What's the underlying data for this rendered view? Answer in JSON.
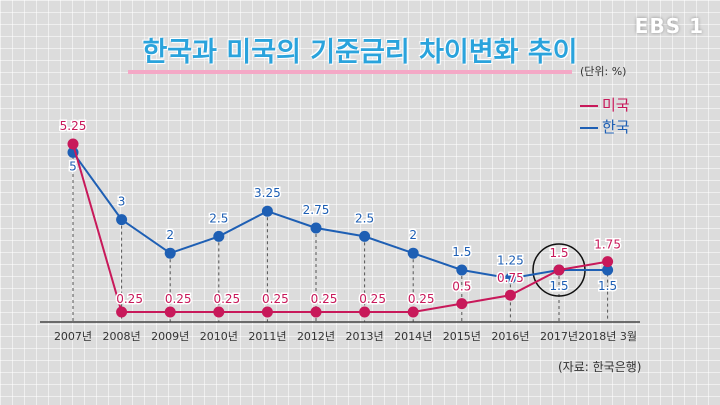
{
  "broadcaster_logo": "EBS 1",
  "chart_data": {
    "type": "line",
    "title": "한국과 미국의 기준금리 차이변화 추이",
    "unit_label": "(단위: %)",
    "source_note": "(자료: 한국은행)",
    "categories": [
      "2007년",
      "2008년",
      "2009년",
      "2010년",
      "2011년",
      "2012년",
      "2013년",
      "2014년",
      "2015년",
      "2016년",
      "2017년",
      "2018년 3월"
    ],
    "series": [
      {
        "name": "미국",
        "color": "#c8195a",
        "values": [
          5.25,
          0.25,
          0.25,
          0.25,
          0.25,
          0.25,
          0.25,
          0.25,
          0.5,
          0.75,
          1.5,
          1.75
        ],
        "labels": [
          "5.25",
          "0.25",
          "0.25",
          "0.25",
          "0.25",
          "0.25",
          "0.25",
          "0.25",
          "0.5",
          "0.75",
          "1.5",
          "1.75"
        ]
      },
      {
        "name": "한국",
        "color": "#1e5fb4",
        "values": [
          5,
          3,
          2,
          2.5,
          3.25,
          2.75,
          2.5,
          2,
          1.5,
          1.25,
          1.5,
          1.5
        ],
        "labels": [
          "5",
          "3",
          "2",
          "2.5",
          "3.25",
          "2.75",
          "2.5",
          "2",
          "1.5",
          "1.25",
          "1.5",
          "1.5"
        ]
      }
    ],
    "highlighted_category": "2017년",
    "ylim": [
      0,
      6
    ]
  }
}
